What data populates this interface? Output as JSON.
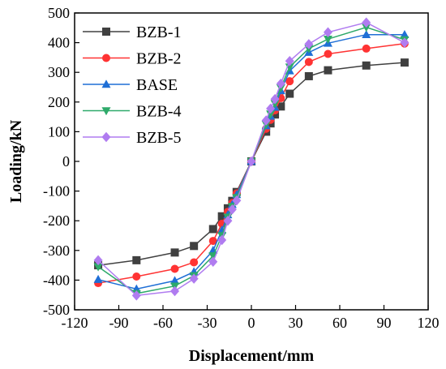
{
  "chart_data": {
    "type": "line",
    "xlabel": "Displacement/mm",
    "ylabel": "Loading/kN",
    "xlim": [
      -120,
      120
    ],
    "ylim": [
      -500,
      500
    ],
    "xticks": [
      -120,
      -90,
      -60,
      -30,
      0,
      30,
      60,
      90,
      120
    ],
    "yticks": [
      -500,
      -400,
      -300,
      -200,
      -100,
      0,
      100,
      200,
      300,
      400,
      500
    ],
    "grid": false,
    "legend_position": "top-left",
    "series": [
      {
        "name": "BZB-1",
        "color": "#404040",
        "marker": "square",
        "x": [
          -104,
          -78,
          -52,
          -39,
          -26,
          -20,
          -16,
          -13,
          -10,
          0,
          10,
          13,
          16,
          20,
          26,
          39,
          52,
          78,
          104
        ],
        "y": [
          -350,
          -333,
          -307,
          -285,
          -228,
          -185,
          -158,
          -133,
          -103,
          0,
          100,
          128,
          158,
          185,
          228,
          287,
          307,
          323,
          333
        ]
      },
      {
        "name": "BZB-2",
        "color": "#ff3333",
        "marker": "circle",
        "x": [
          -104,
          -78,
          -52,
          -39,
          -26,
          -20,
          -16,
          -13,
          -10,
          0,
          10,
          13,
          16,
          20,
          26,
          39,
          52,
          78,
          104
        ],
        "y": [
          -410,
          -388,
          -362,
          -340,
          -268,
          -210,
          -170,
          -140,
          -108,
          0,
          110,
          140,
          172,
          213,
          270,
          335,
          362,
          380,
          397
        ]
      },
      {
        "name": "BASE",
        "color": "#1f6fd6",
        "marker": "triangle-up",
        "x": [
          -104,
          -78,
          -52,
          -39,
          -26,
          -20,
          -16,
          -13,
          -10,
          0,
          10,
          13,
          16,
          20,
          26,
          39,
          52,
          78,
          104
        ],
        "y": [
          -398,
          -430,
          -402,
          -372,
          -300,
          -232,
          -180,
          -145,
          -112,
          0,
          120,
          152,
          182,
          238,
          305,
          367,
          398,
          427,
          427
        ]
      },
      {
        "name": "BZB-4",
        "color": "#2eaa6a",
        "marker": "triangle-down",
        "x": [
          -104,
          -78,
          -52,
          -39,
          -26,
          -20,
          -16,
          -13,
          -10,
          0,
          10,
          13,
          16,
          20,
          26,
          39,
          52,
          78,
          104
        ],
        "y": [
          -355,
          -445,
          -420,
          -385,
          -318,
          -250,
          -188,
          -152,
          -122,
          0,
          125,
          160,
          195,
          248,
          318,
          380,
          412,
          452,
          410
        ]
      },
      {
        "name": "BZB-5",
        "color": "#b07cf0",
        "marker": "diamond",
        "x": [
          -104,
          -78,
          -52,
          -39,
          -26,
          -20,
          -16,
          -13,
          -10,
          0,
          10,
          13,
          16,
          20,
          26,
          39,
          52,
          78,
          104
        ],
        "y": [
          -333,
          -452,
          -437,
          -395,
          -338,
          -265,
          -200,
          -162,
          -132,
          0,
          138,
          178,
          210,
          262,
          338,
          395,
          435,
          468,
          400
        ]
      }
    ]
  }
}
